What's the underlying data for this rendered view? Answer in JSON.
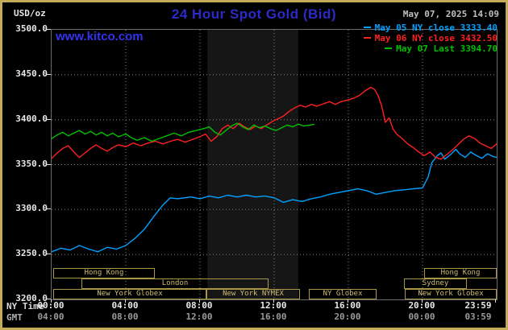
{
  "header": {
    "units_label": "USD/oz",
    "title": "24 Hour Spot Gold (Bid)",
    "datetime": "May 07, 2025 14:09",
    "watermark": "www.kitco.com"
  },
  "legend": [
    {
      "label": "May 05 NY close 3333.40",
      "color": "#00A2FF"
    },
    {
      "label": "May 06 NY close 3432.50",
      "color": "#FF2020"
    },
    {
      "label": "May 07 Last 3394.70",
      "color": "#00C000"
    }
  ],
  "axes": {
    "x_label_ny": "NY Time",
    "x_label_gmt": "GMT",
    "y_ticks": [
      "3500.0",
      "3450.0",
      "3400.0",
      "3350.0",
      "3300.0",
      "3250.0",
      "3200.0"
    ],
    "ny_ticks": [
      "00:00",
      "04:00",
      "08:00",
      "12:00",
      "16:00",
      "20:00",
      "23:59"
    ],
    "gmt_ticks": [
      "04:00",
      "08:00",
      "12:00",
      "16:00",
      "20:00",
      "00:00",
      "03:59"
    ]
  },
  "sessions": [
    {
      "label": "Hong Kong",
      "row": 0,
      "start": 0.1,
      "end": 5.6
    },
    {
      "label": "Hong Kong",
      "row": 0,
      "start": 20.1,
      "end": 24
    },
    {
      "label": "London",
      "row": 1,
      "start": 1.6,
      "end": 11.7
    },
    {
      "label": "Sydney",
      "row": 1,
      "start": 19.0,
      "end": 22.4
    },
    {
      "label": "New York Globex",
      "row": 2,
      "start": 0.1,
      "end": 8.35
    },
    {
      "label": "New York NYMEX",
      "row": 2,
      "start": 8.35,
      "end": 13.4
    },
    {
      "label": "NY Globex",
      "row": 2,
      "start": 13.85,
      "end": 17.5
    },
    {
      "label": "New York Globex",
      "row": 2,
      "start": 19.05,
      "end": 24
    }
  ],
  "chart_data": {
    "type": "line",
    "title": "24 Hour Spot Gold (Bid)",
    "xlabel": "NY Time",
    "ylabel": "USD/oz",
    "x_range": [
      0,
      24
    ],
    "y_range": [
      3200,
      3500
    ],
    "x_gridlines": [
      4,
      8,
      12,
      16,
      20
    ],
    "y_gridlines": [
      3250,
      3300,
      3350,
      3400,
      3450
    ],
    "x_axis_ticks": [
      0,
      4,
      8,
      12,
      16,
      20,
      24
    ],
    "y_axis_ticks": [
      3500,
      3450,
      3400,
      3350,
      3300,
      3250,
      3200
    ],
    "band": {
      "start": 8.4,
      "end": 13.3,
      "color": "#161616"
    },
    "series": [
      {
        "name": "may05",
        "label": "May 05 NY close",
        "close": 3333.4,
        "color": "#00A2FF",
        "points": [
          [
            0,
            3253
          ],
          [
            0.5,
            3257
          ],
          [
            1,
            3255
          ],
          [
            1.5,
            3260
          ],
          [
            2,
            3256
          ],
          [
            2.5,
            3253
          ],
          [
            3,
            3258
          ],
          [
            3.5,
            3256
          ],
          [
            4,
            3260
          ],
          [
            4.5,
            3268
          ],
          [
            5,
            3278
          ],
          [
            5.5,
            3292
          ],
          [
            6,
            3305
          ],
          [
            6.4,
            3313
          ],
          [
            6.8,
            3312
          ],
          [
            7.5,
            3314
          ],
          [
            8,
            3312
          ],
          [
            8.5,
            3315
          ],
          [
            9,
            3313
          ],
          [
            9.5,
            3316
          ],
          [
            10,
            3314
          ],
          [
            10.5,
            3316
          ],
          [
            11,
            3314
          ],
          [
            11.5,
            3315
          ],
          [
            12,
            3313
          ],
          [
            12.5,
            3308
          ],
          [
            13,
            3311
          ],
          [
            13.5,
            3309
          ],
          [
            14,
            3312
          ],
          [
            14.5,
            3314
          ],
          [
            15,
            3317
          ],
          [
            15.5,
            3319
          ],
          [
            16,
            3321
          ],
          [
            16.5,
            3323
          ],
          [
            17,
            3321
          ],
          [
            17.5,
            3317
          ],
          [
            18,
            3319
          ],
          [
            18.5,
            3321
          ],
          [
            19,
            3322
          ],
          [
            19.5,
            3323
          ],
          [
            20,
            3324
          ],
          [
            20.3,
            3336
          ],
          [
            20.5,
            3352
          ],
          [
            20.8,
            3360
          ],
          [
            21,
            3363
          ],
          [
            21.2,
            3356
          ],
          [
            21.5,
            3361
          ],
          [
            21.8,
            3367
          ],
          [
            22,
            3362
          ],
          [
            22.3,
            3358
          ],
          [
            22.6,
            3364
          ],
          [
            22.9,
            3360
          ],
          [
            23.2,
            3357
          ],
          [
            23.5,
            3362
          ],
          [
            23.8,
            3359
          ],
          [
            24,
            3358
          ]
        ]
      },
      {
        "name": "may06",
        "label": "May 06 NY close",
        "close": 3432.5,
        "color": "#FF2020",
        "points": [
          [
            0,
            3357
          ],
          [
            0.3,
            3363
          ],
          [
            0.6,
            3368
          ],
          [
            0.9,
            3371
          ],
          [
            1.2,
            3364
          ],
          [
            1.5,
            3358
          ],
          [
            1.8,
            3363
          ],
          [
            2.1,
            3368
          ],
          [
            2.4,
            3372
          ],
          [
            2.7,
            3368
          ],
          [
            3,
            3365
          ],
          [
            3.3,
            3369
          ],
          [
            3.6,
            3372
          ],
          [
            4,
            3370
          ],
          [
            4.4,
            3374
          ],
          [
            4.8,
            3371
          ],
          [
            5.2,
            3374
          ],
          [
            5.6,
            3376
          ],
          [
            6,
            3373
          ],
          [
            6.4,
            3376
          ],
          [
            6.8,
            3378
          ],
          [
            7.2,
            3375
          ],
          [
            7.6,
            3378
          ],
          [
            8,
            3381
          ],
          [
            8.3,
            3384
          ],
          [
            8.6,
            3376
          ],
          [
            8.9,
            3381
          ],
          [
            9.2,
            3390
          ],
          [
            9.5,
            3394
          ],
          [
            9.8,
            3390
          ],
          [
            10.1,
            3396
          ],
          [
            10.4,
            3392
          ],
          [
            10.7,
            3389
          ],
          [
            11,
            3393
          ],
          [
            11.3,
            3390
          ],
          [
            11.6,
            3394
          ],
          [
            11.9,
            3398
          ],
          [
            12.2,
            3401
          ],
          [
            12.5,
            3404
          ],
          [
            12.8,
            3409
          ],
          [
            13.1,
            3413
          ],
          [
            13.4,
            3416
          ],
          [
            13.7,
            3414
          ],
          [
            14,
            3417
          ],
          [
            14.3,
            3415
          ],
          [
            14.7,
            3418
          ],
          [
            15,
            3420
          ],
          [
            15.3,
            3417
          ],
          [
            15.6,
            3420
          ],
          [
            16,
            3422
          ],
          [
            16.3,
            3424
          ],
          [
            16.6,
            3427
          ],
          [
            16.9,
            3432
          ],
          [
            17.2,
            3436
          ],
          [
            17.4,
            3434
          ],
          [
            17.6,
            3427
          ],
          [
            17.8,
            3415
          ],
          [
            18,
            3397
          ],
          [
            18.2,
            3402
          ],
          [
            18.4,
            3390
          ],
          [
            18.6,
            3384
          ],
          [
            18.9,
            3379
          ],
          [
            19.2,
            3373
          ],
          [
            19.5,
            3369
          ],
          [
            19.8,
            3364
          ],
          [
            20.1,
            3360
          ],
          [
            20.4,
            3364
          ],
          [
            20.7,
            3358
          ],
          [
            21,
            3356
          ],
          [
            21.3,
            3361
          ],
          [
            21.6,
            3366
          ],
          [
            21.9,
            3372
          ],
          [
            22.2,
            3378
          ],
          [
            22.5,
            3382
          ],
          [
            22.8,
            3379
          ],
          [
            23.1,
            3374
          ],
          [
            23.4,
            3371
          ],
          [
            23.7,
            3368
          ],
          [
            24,
            3373
          ]
        ]
      },
      {
        "name": "may07",
        "label": "May 07 Last",
        "last": 3394.7,
        "color": "#00C000",
        "points": [
          [
            0,
            3379
          ],
          [
            0.3,
            3383
          ],
          [
            0.6,
            3386
          ],
          [
            0.9,
            3382
          ],
          [
            1.2,
            3385
          ],
          [
            1.5,
            3388
          ],
          [
            1.8,
            3384
          ],
          [
            2.1,
            3387
          ],
          [
            2.4,
            3383
          ],
          [
            2.7,
            3386
          ],
          [
            3,
            3382
          ],
          [
            3.3,
            3385
          ],
          [
            3.6,
            3381
          ],
          [
            4,
            3384
          ],
          [
            4.3,
            3380
          ],
          [
            4.6,
            3377
          ],
          [
            5,
            3380
          ],
          [
            5.4,
            3376
          ],
          [
            5.8,
            3379
          ],
          [
            6.2,
            3382
          ],
          [
            6.6,
            3385
          ],
          [
            7,
            3382
          ],
          [
            7.4,
            3386
          ],
          [
            7.8,
            3388
          ],
          [
            8.2,
            3390
          ],
          [
            8.5,
            3392
          ],
          [
            8.8,
            3386
          ],
          [
            9.1,
            3383
          ],
          [
            9.4,
            3388
          ],
          [
            9.7,
            3393
          ],
          [
            10,
            3396
          ],
          [
            10.3,
            3392
          ],
          [
            10.6,
            3389
          ],
          [
            10.9,
            3394
          ],
          [
            11.2,
            3391
          ],
          [
            11.5,
            3393
          ],
          [
            11.8,
            3390
          ],
          [
            12.1,
            3388
          ],
          [
            12.4,
            3391
          ],
          [
            12.7,
            3394
          ],
          [
            13,
            3392
          ],
          [
            13.3,
            3395
          ],
          [
            13.6,
            3393
          ],
          [
            13.9,
            3394
          ],
          [
            14.15,
            3394.7
          ]
        ]
      }
    ]
  }
}
